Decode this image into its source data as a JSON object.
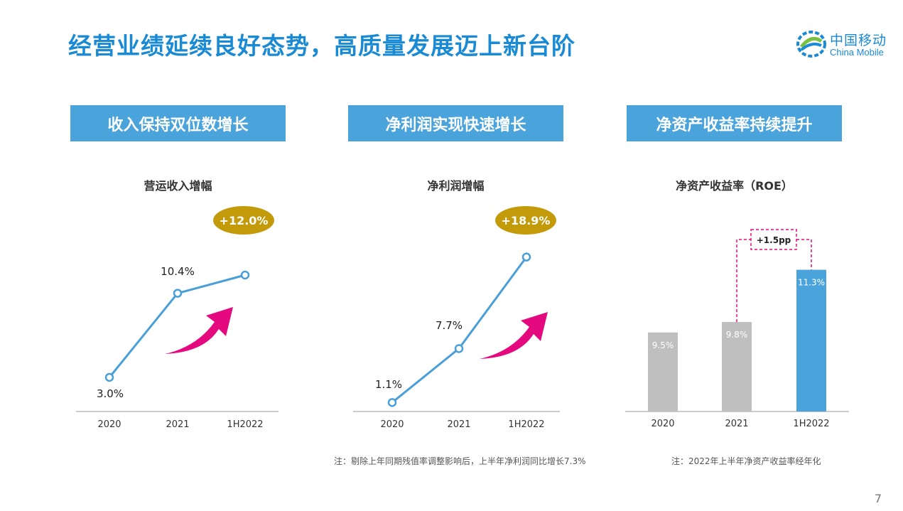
{
  "title": "经营业绩延续良好态势，高质量发展迈上新台阶",
  "logo": {
    "cn": "中国移动",
    "en": "China Mobile"
  },
  "colors": {
    "accent": "#1a8ad4",
    "header": "#4aa3db",
    "line": "#4a9fd8",
    "gold": "#c39a0a",
    "arrow": "#e5097f",
    "bar_gray": "#bfbfbf",
    "bar_blue": "#4aa3db",
    "dash": "#e5097f"
  },
  "page_number": "7",
  "notes": [
    "注：剔除上年同期残值率调整影响后，上半年净利润同比增长7.3%",
    "注：2022年上半年净资产收益率经年化"
  ],
  "chart_data": [
    {
      "type": "line",
      "header": "收入保持双位数增长",
      "title": "营运收入增幅",
      "categories": [
        "2020",
        "2021",
        "1H2022"
      ],
      "values": [
        3.0,
        10.4,
        12.0
      ],
      "labels": [
        "3.0%",
        "10.4%"
      ],
      "badge": "+12.0%",
      "unit": "%"
    },
    {
      "type": "line",
      "header": "净利润实现快速增长",
      "title": "净利润增幅",
      "categories": [
        "2020",
        "2021",
        "1H2022"
      ],
      "values": [
        1.1,
        7.7,
        18.9
      ],
      "labels": [
        "1.1%",
        "7.7%"
      ],
      "badge": "+18.9%",
      "unit": "%"
    },
    {
      "type": "bar",
      "header": "净资产收益率持续提升",
      "title": "净资产收益率（ROE）",
      "categories": [
        "2020",
        "2021",
        "1H2022"
      ],
      "values": [
        9.5,
        9.8,
        11.3
      ],
      "labels": [
        "9.5%",
        "9.8%",
        "11.3%"
      ],
      "annotation": "+1.5pp",
      "unit": "%"
    }
  ]
}
